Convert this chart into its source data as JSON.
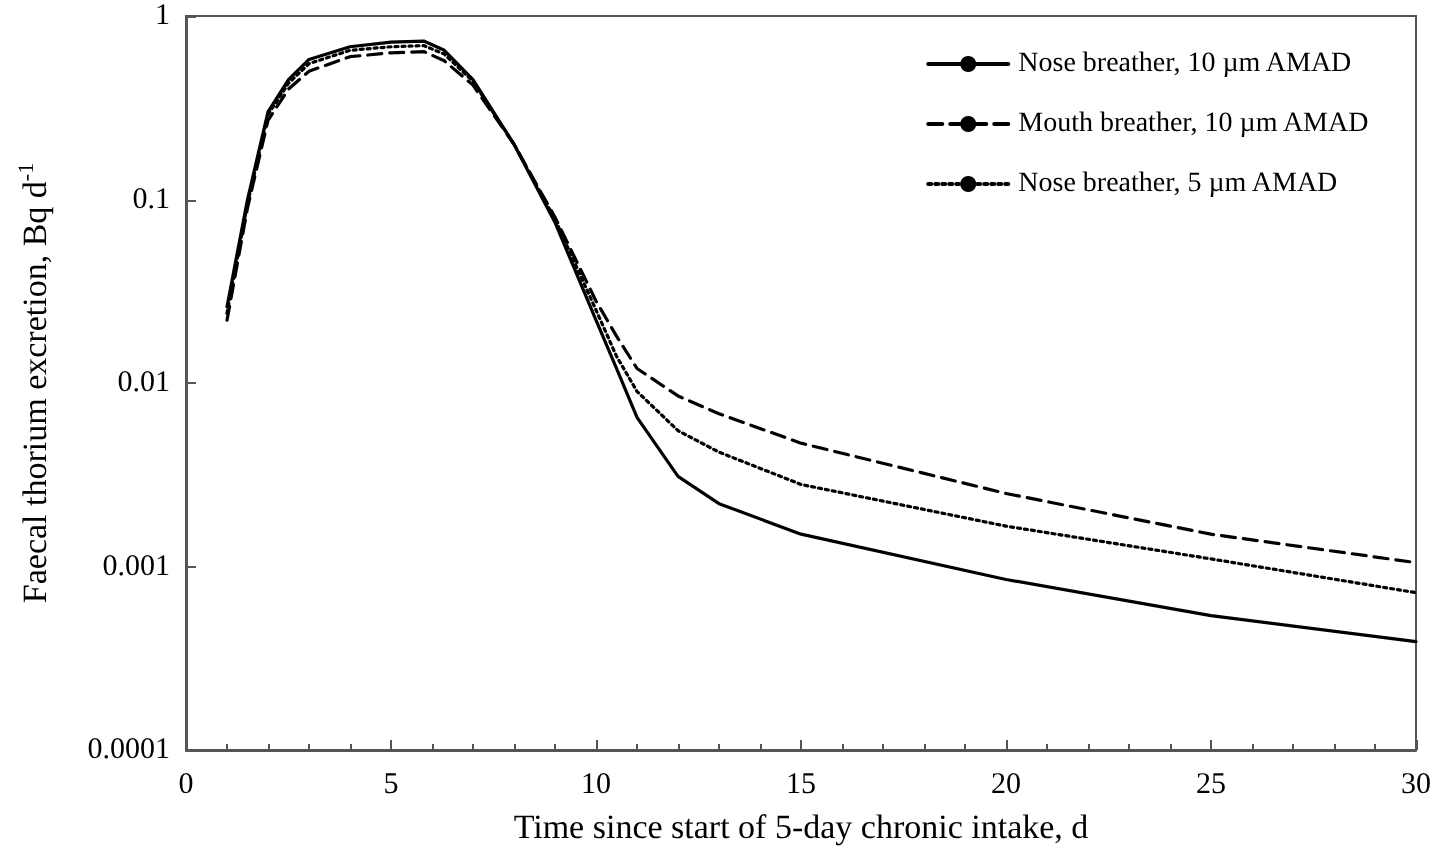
{
  "chart_data": {
    "type": "line",
    "xlabel": "Time since start of 5-day chronic intake, d",
    "ylabel": "Faecal thorium excretion, Bq d$^{-1}$",
    "log": "y",
    "xlim": [
      0,
      30
    ],
    "xticks": [
      0,
      5,
      10,
      15,
      20,
      25,
      30
    ],
    "ylim": [
      0.0001,
      1
    ],
    "yticks": [
      0.0001,
      0.001,
      0.01,
      0.1,
      1
    ],
    "grid": false,
    "legend": "top right",
    "marker": "none",
    "series": [
      {
        "name": "Nose breather, 10 µm AMAD",
        "color": "#000000",
        "line_style": "solid",
        "x": [
          1,
          1.5,
          2,
          2.5,
          3,
          4,
          5,
          5.8,
          6.3,
          7,
          8,
          9,
          10,
          10.5,
          11,
          12,
          13,
          15,
          20,
          25,
          30
        ],
        "values": [
          0.026,
          0.1,
          0.3,
          0.45,
          0.58,
          0.68,
          0.72,
          0.73,
          0.65,
          0.45,
          0.2,
          0.075,
          0.022,
          0.012,
          0.0065,
          0.0031,
          0.0022,
          0.0015,
          0.00085,
          0.00054,
          0.00039
        ]
      },
      {
        "name": "Mouth breather, 10 µm AMAD",
        "color": "#000000",
        "line_style": "dashed",
        "x": [
          1,
          1.5,
          2,
          2.5,
          3,
          4,
          5,
          5.8,
          6.3,
          7,
          8,
          9,
          10,
          10.5,
          11,
          12,
          13,
          15,
          20,
          25,
          30
        ],
        "values": [
          0.022,
          0.09,
          0.27,
          0.4,
          0.5,
          0.6,
          0.63,
          0.64,
          0.57,
          0.42,
          0.2,
          0.08,
          0.028,
          0.018,
          0.012,
          0.0085,
          0.0068,
          0.0047,
          0.0025,
          0.0015,
          0.00105
        ]
      },
      {
        "name": "Nose breather, 5 µm AMAD",
        "color": "#000000",
        "line_style": "dotted",
        "x": [
          1,
          1.5,
          2,
          2.5,
          3,
          4,
          5,
          5.8,
          6.3,
          7,
          8,
          9,
          10,
          10.5,
          11,
          12,
          13,
          15,
          20,
          25,
          30
        ],
        "values": [
          0.024,
          0.095,
          0.29,
          0.43,
          0.55,
          0.65,
          0.68,
          0.69,
          0.62,
          0.44,
          0.2,
          0.078,
          0.025,
          0.014,
          0.009,
          0.0055,
          0.0042,
          0.0028,
          0.00166,
          0.0011,
          0.00072
        ]
      }
    ]
  }
}
